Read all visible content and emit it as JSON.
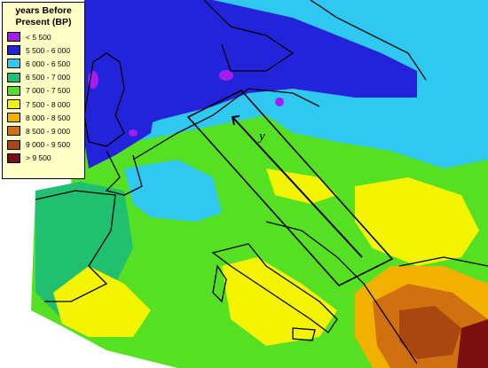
{
  "legend": {
    "title_line1": "years Before",
    "title_line2": "Present (BP)",
    "items": [
      {
        "label": "< 5 500",
        "color": "#a41cf0"
      },
      {
        "label": "5 500 - 6 000",
        "color": "#2323dc"
      },
      {
        "label": "6 000 - 6 500",
        "color": "#2ec8f0"
      },
      {
        "label": "6 500 - 7 000",
        "color": "#20c070"
      },
      {
        "label": "7 000 - 7 500",
        "color": "#56e024"
      },
      {
        "label": "7 500 - 8 000",
        "color": "#f4f400"
      },
      {
        "label": "8 000 - 8 500",
        "color": "#f2b000"
      },
      {
        "label": "8 500 - 9 000",
        "color": "#d07010"
      },
      {
        "label": "9 000 - 9 500",
        "color": "#a84810"
      },
      {
        "label": "> 9 500",
        "color": "#7a1010"
      }
    ]
  },
  "annotation": {
    "corridor_label": "y"
  }
}
